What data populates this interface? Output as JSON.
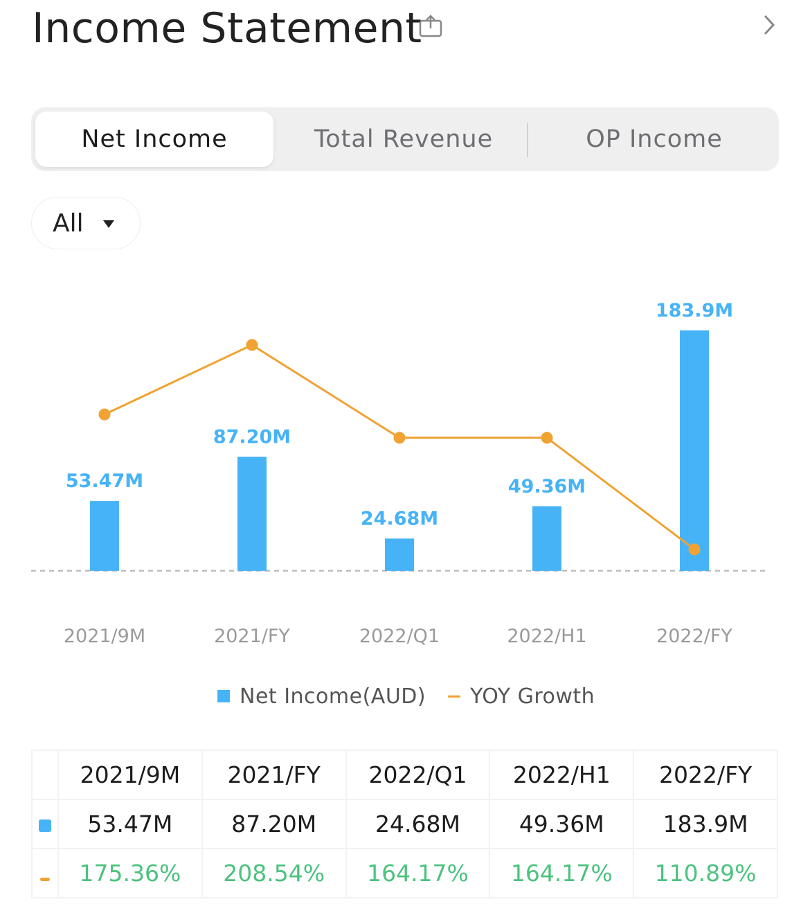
{
  "header": {
    "title": "Income Statement"
  },
  "tabs": [
    {
      "label": "Net Income",
      "active": true
    },
    {
      "label": "Total Revenue",
      "active": false
    },
    {
      "label": "OP Income",
      "active": false
    }
  ],
  "filter": {
    "selected": "All"
  },
  "colors": {
    "bar": "#47b3f7",
    "line": "#f0a232",
    "growth_text": "#4cc27e"
  },
  "chart_data": {
    "type": "bar",
    "categories": [
      "2021/9M",
      "2021/FY",
      "2022/Q1",
      "2022/H1",
      "2022/FY"
    ],
    "series": [
      {
        "name": "Net Income(AUD)",
        "type": "bar",
        "values": [
          53.47,
          87.2,
          24.68,
          49.36,
          183.9
        ],
        "labels": [
          "53.47M",
          "87.20M",
          "24.68M",
          "49.36M",
          "183.9M"
        ]
      },
      {
        "name": "YOY Growth",
        "type": "line",
        "values": [
          175.36,
          208.54,
          164.17,
          164.17,
          110.89
        ],
        "labels": [
          "175.36%",
          "208.54%",
          "164.17%",
          "164.17%",
          "110.89%"
        ]
      }
    ],
    "legend": [
      "Net Income(AUD)",
      "YOY Growth"
    ],
    "legend_position": "bottom",
    "baseline": "dashed"
  },
  "table": {
    "headers": [
      "2021/9M",
      "2021/FY",
      "2022/Q1",
      "2022/H1",
      "2022/FY"
    ],
    "income_row": [
      "53.47M",
      "87.20M",
      "24.68M",
      "49.36M",
      "183.9M"
    ],
    "growth_row": [
      "175.36%",
      "208.54%",
      "164.17%",
      "164.17%",
      "110.89%"
    ]
  }
}
